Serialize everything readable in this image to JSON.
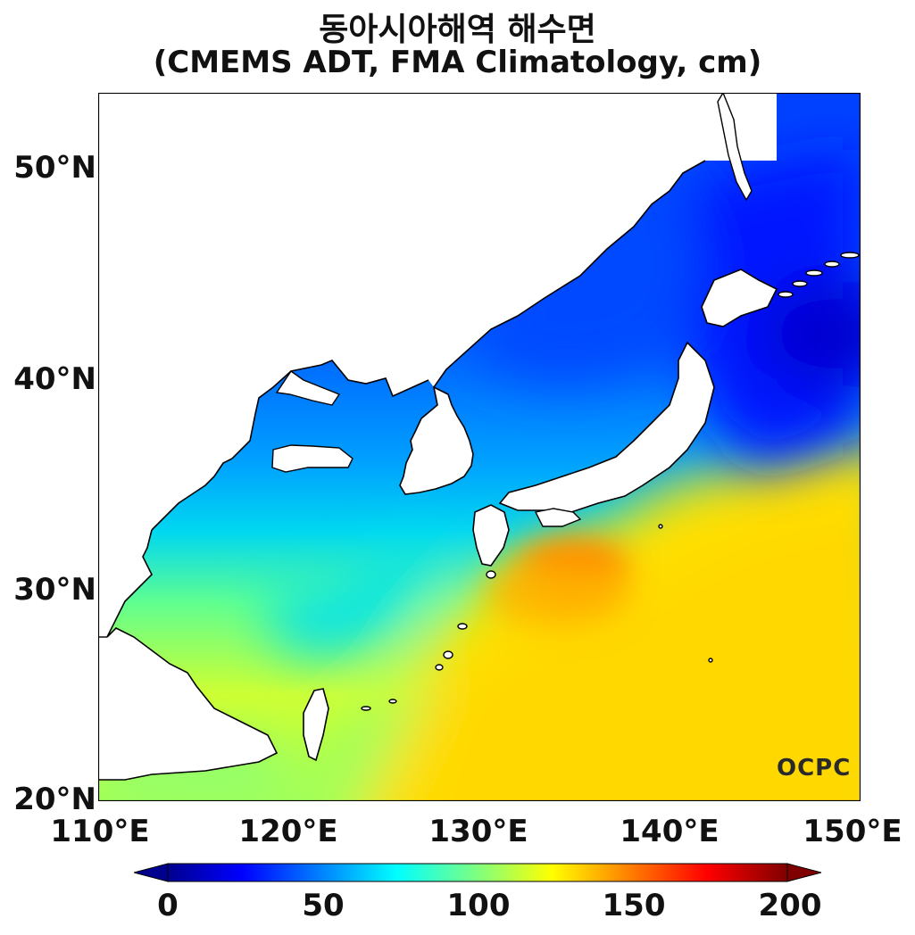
{
  "title": {
    "line1": "동아시아해역 해수면",
    "line2": "(CMEMS ADT, FMA Climatology, cm)"
  },
  "axes": {
    "y_ticks": [
      "50°N",
      "40°N",
      "30°N",
      "20°N"
    ],
    "x_ticks": [
      "110°E",
      "120°E",
      "130°E",
      "140°E",
      "150°E"
    ]
  },
  "colorbar": {
    "ticks": [
      "0",
      "50",
      "100",
      "150",
      "200"
    ],
    "range": [
      0,
      200
    ],
    "colormap": "jet"
  },
  "logo": "OCPC",
  "colors": {
    "land": "#ffffff",
    "coast": "#000000",
    "low": "#0000ff",
    "mid": "#00c8ff",
    "high": "#ffe000",
    "peak": "#ff7a00"
  }
}
